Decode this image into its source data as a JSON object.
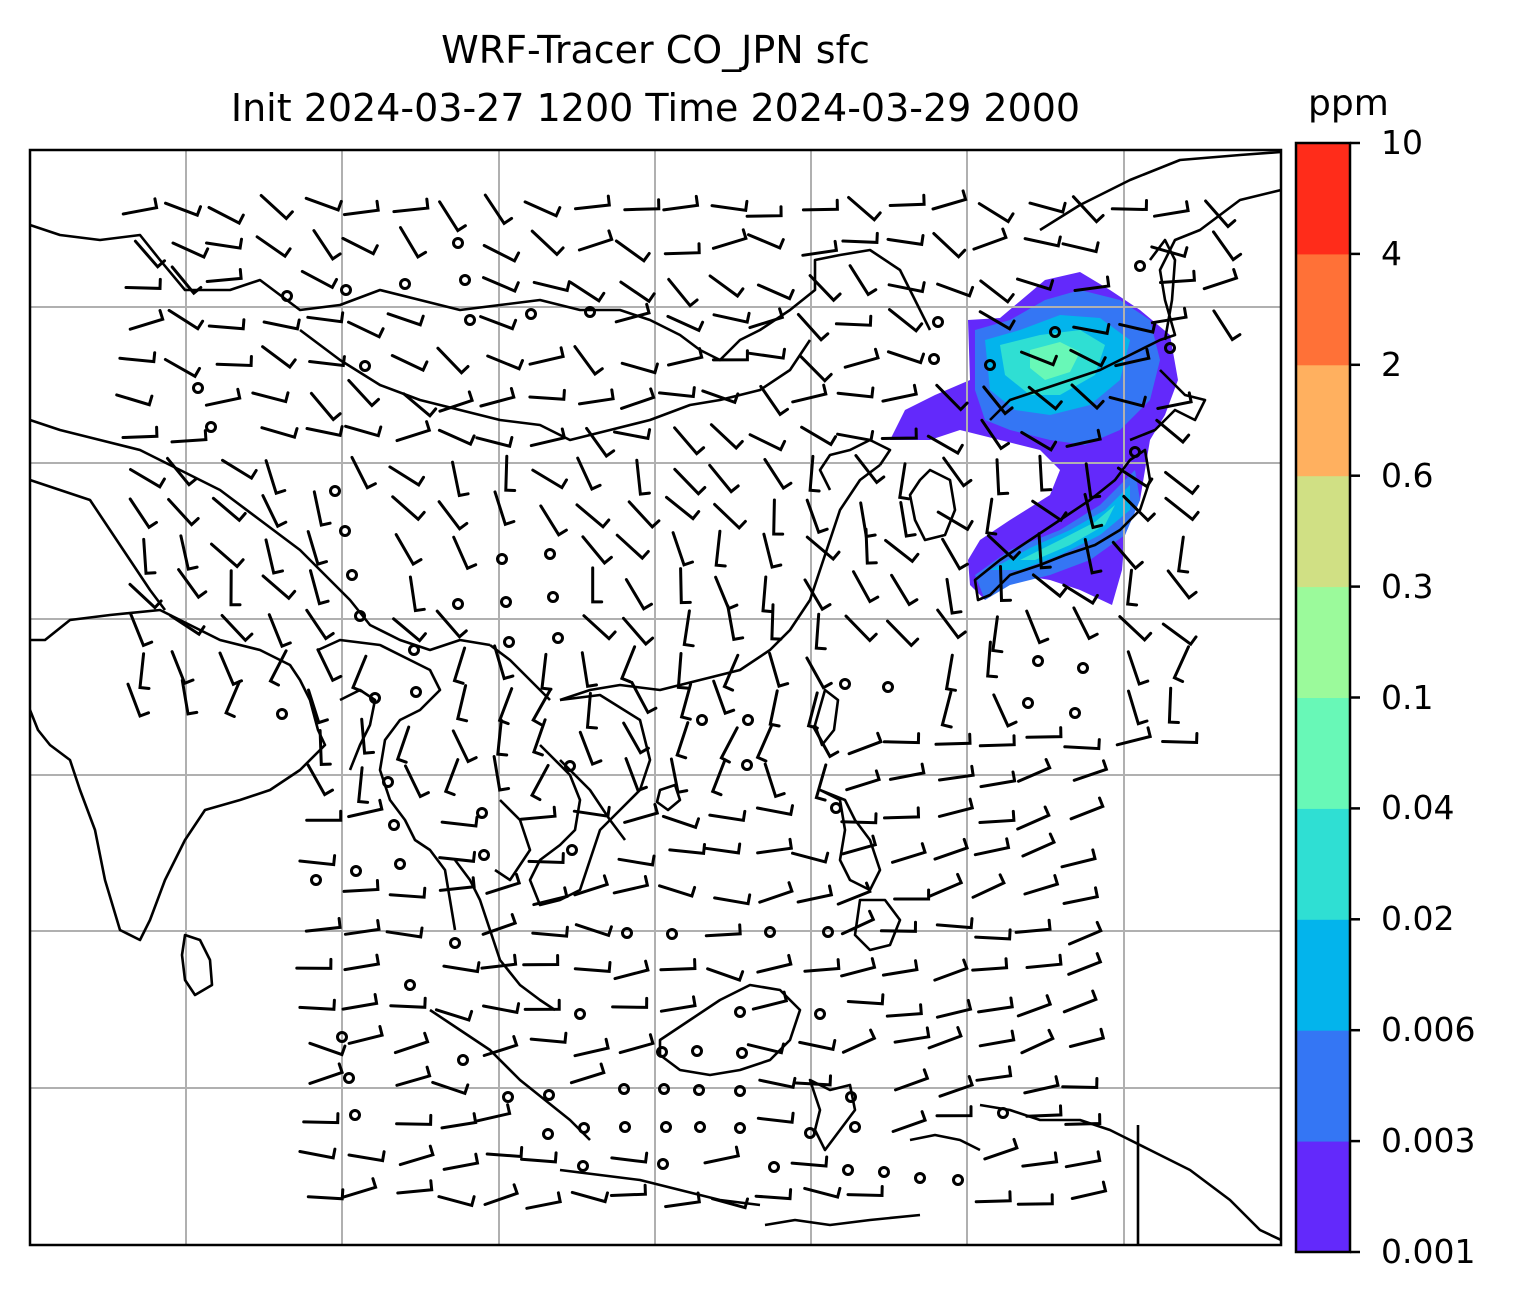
{
  "title": {
    "line1": "WRF-Tracer CO_JPN sfc",
    "line2": "Init 2024-03-27 1200 Time 2024-03-29 2000"
  },
  "colorbar": {
    "unit": "ppm",
    "ticks": [
      "0.001",
      "0.003",
      "0.006",
      "0.02",
      "0.04",
      "0.1",
      "0.3",
      "0.6",
      "2",
      "4",
      "10"
    ],
    "colors": [
      "#6329fb",
      "#3476f4",
      "#03b4ec",
      "#2fdfd3",
      "#68f8b7",
      "#9bfa9b",
      "#d0e084",
      "#ffb05f",
      "#ff7137",
      "#ff2c1a"
    ]
  },
  "map": {
    "type": "contour-map-with-wind-barbs",
    "tracer": "CO_JPN",
    "level": "sfc",
    "gridlines": true,
    "plume_region": "Japan and Sea of Japan area"
  }
}
